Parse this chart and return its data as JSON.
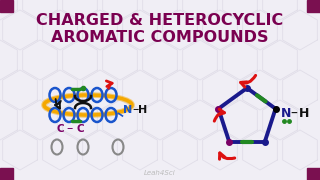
{
  "bg_color": "#f0eef5",
  "title_line1": "CHARGED & HETEROCYCLIC",
  "title_line2": "AROMATIC COMPOUNDS",
  "title_color": "#7a0050",
  "title_fontsize": 11.5,
  "watermark": "Leah4Sci",
  "watermark_color": "#bbbbbb",
  "hex_color": "#e0dde8",
  "corner_color": "#7a1050",
  "orange_color": "#f5a800",
  "blue_color": "#1a55cc",
  "green_color": "#228822",
  "red_color": "#dd1111",
  "black_color": "#111111",
  "purple_color": "#7a0066",
  "gray_color": "#888888",
  "navy_color": "#1a1a8c"
}
